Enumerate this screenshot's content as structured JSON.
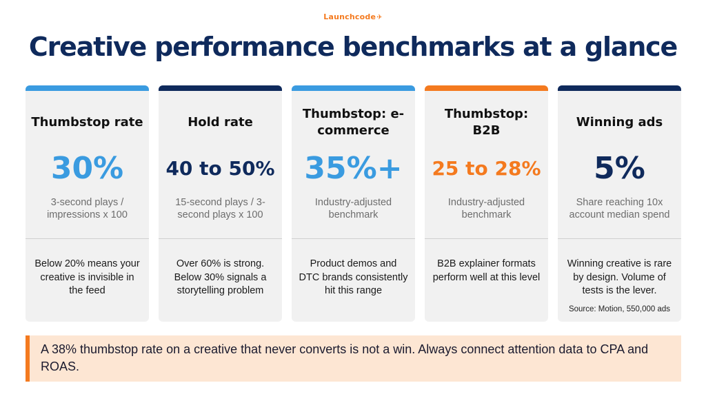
{
  "brand": {
    "name": "Launchcode"
  },
  "title": "Creative performance benchmarks at a glance",
  "cards": [
    {
      "heading": "Thumbstop rate",
      "stat": "30%",
      "stat_color": "#3a9be0",
      "bar_color": "#3a9be0",
      "description": "3-second plays / impressions x 100",
      "note": "Below 20% means your creative is invisible in the feed"
    },
    {
      "heading": "Hold rate",
      "stat": "40 to 50%",
      "stat_color": "#0f2a5c",
      "bar_color": "#0f2a5c",
      "description": "15-second plays / 3-second plays x 100",
      "note": "Over 60% is strong. Below 30% signals a storytelling problem"
    },
    {
      "heading": "Thumbstop: e-commerce",
      "stat": "35%+",
      "stat_color": "#3a9be0",
      "bar_color": "#3a9be0",
      "description": "Industry-adjusted benchmark",
      "note": "Product demos and DTC brands consistently hit this range"
    },
    {
      "heading": "Thumbstop: B2B",
      "stat": "25 to 28%",
      "stat_color": "#f47a1f",
      "bar_color": "#f47a1f",
      "description": "Industry-adjusted benchmark",
      "note": "B2B explainer formats perform well at this level"
    },
    {
      "heading": "Winning ads",
      "stat": "5%",
      "stat_color": "#0f2a5c",
      "bar_color": "#0f2a5c",
      "description": "Share reaching 10x account median spend",
      "note": "Winning creative is rare by design. Volume of tests is the lever.",
      "source": "Source: Motion, 550,000 ads"
    }
  ],
  "callout": {
    "text": "A 38% thumbstop rate on a creative that never converts is not a win. Always connect attention data to CPA and ROAS.",
    "accent_color": "#f47a1f"
  }
}
